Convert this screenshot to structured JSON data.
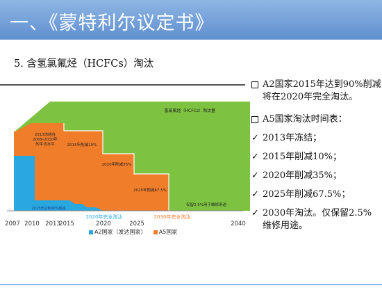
{
  "slide": {
    "title": "一、《蒙特利尔议定书》",
    "subtitle": "5. 含氢氯氟烃（HCFCs）淘汰"
  },
  "chart_data": {
    "type": "area",
    "x_ticks": [
      "2007",
      "2010",
      "2013",
      "2015",
      "2020",
      "2025",
      "2040"
    ],
    "annotations": {
      "green_label": "氢氯氟烃（HCFCs）淘汰量",
      "freeze": "2013冻结在\n2009-2010年\n的平均水平",
      "cut10": "2015年削减10%",
      "cut35": "2020年削减35%",
      "cut675": "2025年削减67.5%",
      "keep25": "仅留2.5%用于维修用途",
      "a2_90": "2015年达到90%削减",
      "a2_out": "2020年完全淘汰",
      "a5_out": "2030年完全淘汰"
    },
    "legend": [
      {
        "label": "A2国家（发达国家）",
        "color": "#29a8e0"
      },
      {
        "label": "A5国家",
        "color": "#f07d2a"
      }
    ],
    "colors": {
      "green": "#7dc241",
      "orange": "#f07d2a",
      "blue": "#29a8e0"
    }
  },
  "right_panel": {
    "a2_text_1": "A2国家2015年达到90%削减，",
    "a2_text_2": "将在2020年完全淘汰。",
    "a5_header": "A5国家淘汰时间表：",
    "items": [
      "2013年冻结；",
      "2015年削减10%；",
      "2020年削减35%；",
      "2025年削减67.5%；",
      "2030年淘汰。仅保留2.5%"
    ],
    "last_item_cont": "维修用途。"
  }
}
